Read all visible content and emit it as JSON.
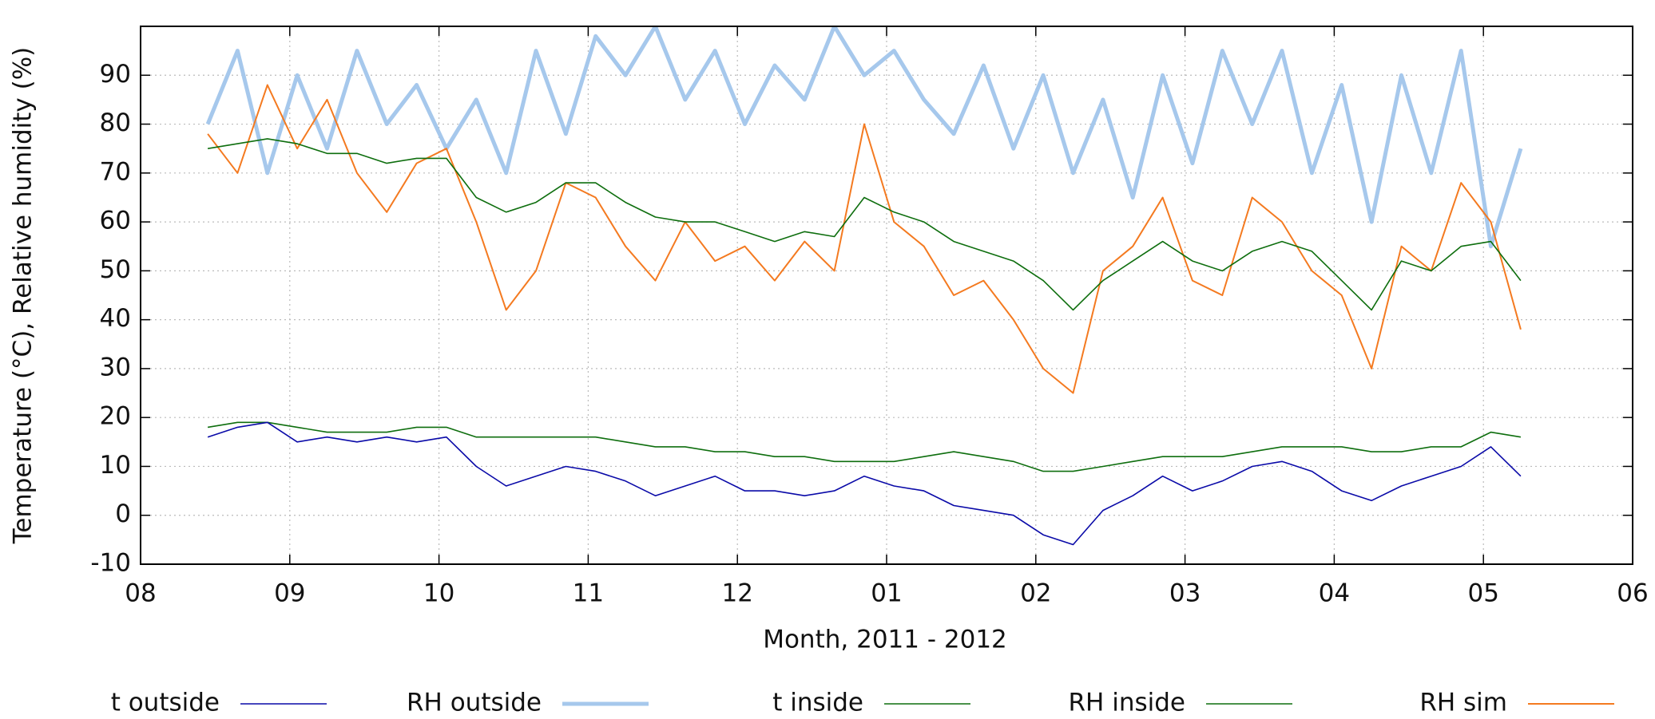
{
  "chart_data": {
    "type": "line",
    "x_label": "Month, 2011 - 2012",
    "y_label": "Temperature (°C), Relative humidity (%)",
    "x": [
      0.45,
      0.65,
      0.85,
      1.05,
      1.25,
      1.45,
      1.65,
      1.85,
      2.05,
      2.25,
      2.45,
      2.65,
      2.85,
      3.05,
      3.25,
      3.45,
      3.65,
      3.85,
      4.05,
      4.25,
      4.45,
      4.65,
      4.85,
      5.05,
      5.25,
      5.45,
      5.65,
      5.85,
      6.05,
      6.25,
      6.45,
      6.65,
      6.85,
      7.05,
      7.25,
      7.45,
      7.65,
      7.85,
      8.05,
      8.25,
      8.45,
      8.65,
      8.85,
      9.05,
      9.25
    ],
    "xlim": [
      0,
      10
    ],
    "xticks": [
      {
        "value": 0,
        "label": "08"
      },
      {
        "value": 1,
        "label": "09"
      },
      {
        "value": 2,
        "label": "10"
      },
      {
        "value": 3,
        "label": "11"
      },
      {
        "value": 4,
        "label": "12"
      },
      {
        "value": 5,
        "label": "01"
      },
      {
        "value": 6,
        "label": "02"
      },
      {
        "value": 7,
        "label": "03"
      },
      {
        "value": 8,
        "label": "04"
      },
      {
        "value": 9,
        "label": "05"
      },
      {
        "value": 10,
        "label": "06"
      }
    ],
    "ylim": [
      -10,
      100
    ],
    "yticks": [
      -10,
      0,
      10,
      20,
      30,
      40,
      50,
      60,
      70,
      80,
      90
    ],
    "grid": true,
    "legend": "bottom",
    "series": [
      {
        "name": "t outside",
        "color": "#0a0aa8",
        "line_width": 1.6,
        "values": [
          16,
          18,
          19,
          15,
          16,
          15,
          16,
          15,
          16,
          10,
          6,
          8,
          10,
          9,
          7,
          4,
          6,
          8,
          5,
          5,
          4,
          5,
          8,
          6,
          5,
          2,
          1,
          0,
          -4,
          -6,
          1,
          4,
          8,
          5,
          7,
          10,
          11,
          9,
          5,
          3,
          6,
          8,
          10,
          14,
          8
        ]
      },
      {
        "name": "RH outside",
        "color": "#a6c8ec",
        "line_width": 5,
        "values": [
          80,
          95,
          70,
          90,
          75,
          95,
          80,
          88,
          75,
          85,
          70,
          95,
          78,
          98,
          90,
          100,
          85,
          95,
          80,
          92,
          85,
          100,
          90,
          95,
          85,
          78,
          92,
          75,
          90,
          70,
          85,
          65,
          90,
          72,
          95,
          80,
          95,
          70,
          88,
          60,
          90,
          70,
          95,
          55,
          75
        ]
      },
      {
        "name": "t inside",
        "color": "#0e6e0e",
        "line_width": 1.6,
        "values": [
          18,
          19,
          19,
          18,
          17,
          17,
          17,
          18,
          18,
          16,
          16,
          16,
          16,
          16,
          15,
          14,
          14,
          13,
          13,
          12,
          12,
          11,
          11,
          11,
          12,
          13,
          12,
          11,
          9,
          9,
          10,
          11,
          12,
          12,
          12,
          13,
          14,
          14,
          14,
          13,
          13,
          14,
          14,
          17,
          16
        ]
      },
      {
        "name": "RH inside",
        "color": "#0e6e0e",
        "line_width": 1.6,
        "values": [
          75,
          76,
          77,
          76,
          74,
          74,
          72,
          73,
          73,
          65,
          62,
          64,
          68,
          68,
          64,
          61,
          60,
          60,
          58,
          56,
          58,
          57,
          65,
          62,
          60,
          56,
          54,
          52,
          48,
          42,
          48,
          52,
          56,
          52,
          50,
          54,
          56,
          54,
          48,
          42,
          52,
          50,
          55,
          56,
          48
        ]
      },
      {
        "name": "RH sim",
        "color": "#f47a20",
        "line_width": 2,
        "values": [
          78,
          70,
          88,
          75,
          85,
          70,
          62,
          72,
          75,
          60,
          42,
          50,
          68,
          65,
          55,
          48,
          60,
          52,
          55,
          48,
          56,
          50,
          80,
          60,
          55,
          45,
          48,
          40,
          30,
          25,
          50,
          55,
          65,
          48,
          45,
          65,
          60,
          50,
          45,
          30,
          55,
          50,
          68,
          60,
          38
        ]
      }
    ]
  }
}
